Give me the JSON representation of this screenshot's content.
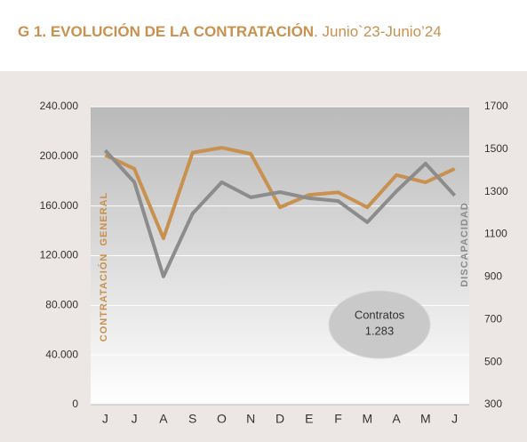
{
  "chart_data": {
    "type": "line",
    "title": "G 1. EVOLUCIÓN DE LA CONTRATACIÓN",
    "subtitle": ". Junio`23-Junio’24",
    "categories": [
      "J",
      "J",
      "A",
      "S",
      "O",
      "N",
      "D",
      "E",
      "F",
      "M",
      "A",
      "M",
      "J"
    ],
    "series": [
      {
        "name": "CONTRATACIÓN  GENERAL",
        "color": "#c8914f",
        "axis": "y",
        "values": [
          201000,
          190000,
          134000,
          203000,
          207000,
          202000,
          159000,
          169000,
          171000,
          159000,
          185000,
          179000,
          190000
        ]
      },
      {
        "name": "DISCAPACIDAD",
        "color": "#8c8c8c",
        "axis": "y2",
        "values": [
          1495,
          1345,
          902,
          1198,
          1345,
          1274,
          1299,
          1270,
          1257,
          1157,
          1303,
          1433,
          1283
        ]
      }
    ],
    "ylim": [
      0,
      240000
    ],
    "yticks": [
      0,
      {
        "value": 40000,
        "label": "40.000"
      },
      {
        "value": 80000,
        "label": "80.000"
      },
      {
        "value": 120000,
        "label": "120.000"
      },
      {
        "value": 160000,
        "label": "160.000"
      },
      {
        "value": 200000,
        "label": "200.000"
      },
      {
        "value": 240000,
        "label": "240.000"
      }
    ],
    "y2lim": [
      300,
      1700
    ],
    "y2ticks": [
      300,
      500,
      700,
      900,
      1100,
      1300,
      1500,
      1700
    ],
    "grid": true,
    "annotation": [
      "Contratos",
      "1.283"
    ]
  }
}
